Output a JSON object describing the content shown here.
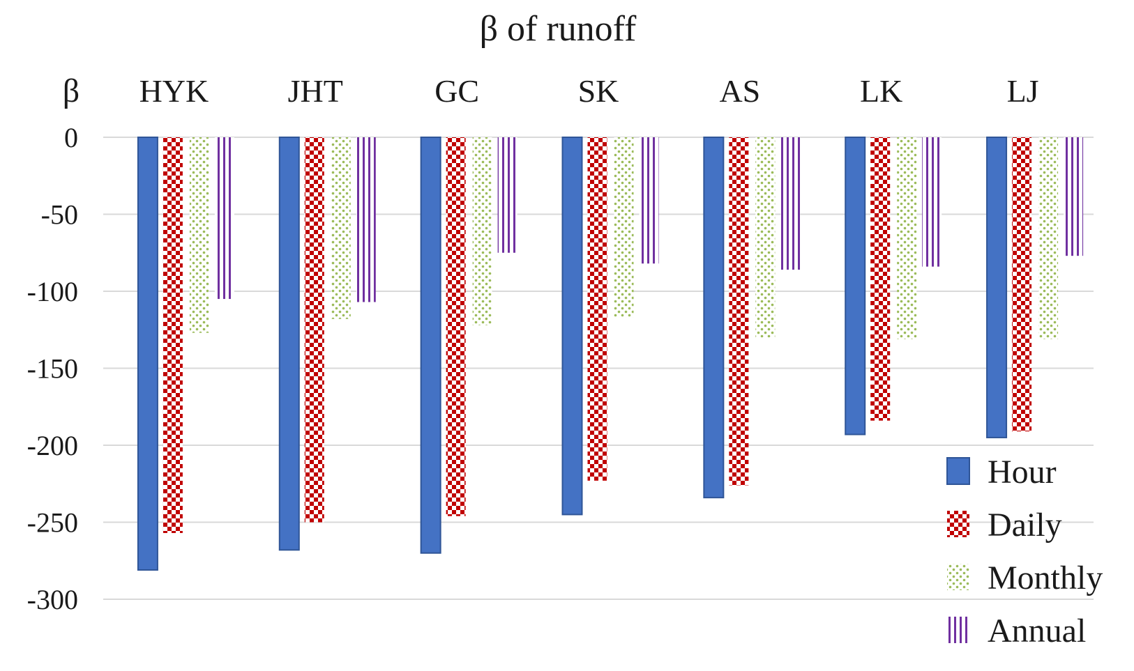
{
  "chart_data": {
    "type": "bar",
    "title": "β of runoff",
    "ylabel": "β",
    "xlabel": "",
    "categories": [
      "HYK",
      "JHT",
      "GC",
      "SK",
      "AS",
      "LK",
      "LJ"
    ],
    "ylim": [
      -300,
      0
    ],
    "yticks": [
      0,
      -50,
      -100,
      -150,
      -200,
      -250,
      -300
    ],
    "grid": true,
    "legend_position": "bottom-right",
    "series": [
      {
        "name": "Hour",
        "color": "#4472c4",
        "pattern": "solid",
        "values": [
          -281,
          -268,
          -270,
          -245,
          -234,
          -193,
          -195
        ]
      },
      {
        "name": "Daily",
        "color": "#c00000",
        "pattern": "checker",
        "values": [
          -257,
          -250,
          -246,
          -223,
          -226,
          -184,
          -191
        ]
      },
      {
        "name": "Monthly",
        "color": "#9bbb59",
        "pattern": "dots",
        "values": [
          -127,
          -118,
          -122,
          -117,
          -130,
          -131,
          -131
        ]
      },
      {
        "name": "Annual",
        "color": "#7030a0",
        "pattern": "vlines",
        "values": [
          -105,
          -107,
          -75,
          -82,
          -86,
          -84,
          -77
        ]
      }
    ]
  }
}
